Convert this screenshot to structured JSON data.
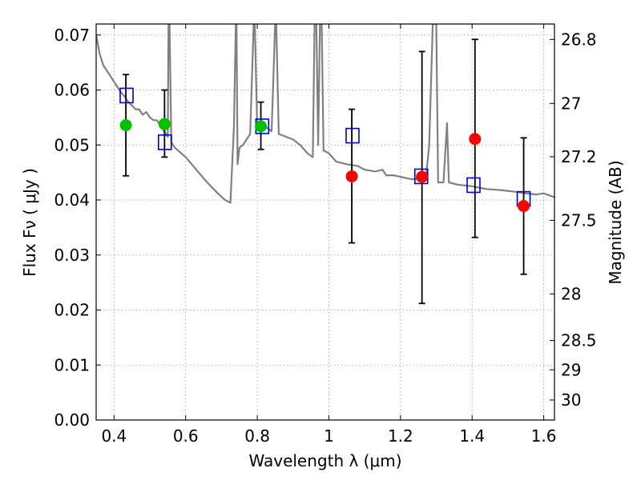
{
  "chart_data": {
    "type": "scatter",
    "title": "",
    "xlabel": "Wavelength  λ (μm)",
    "ylabel": "Flux  Fν  ( μJy )",
    "y2label": "Magnitude (AB)",
    "xlim": [
      0.35,
      1.63
    ],
    "ylim": [
      0.0,
      0.072
    ],
    "grid": true,
    "grid_style": "dotted",
    "legend": "none",
    "x_ticks": [
      0.4,
      0.6,
      0.8,
      1.0,
      1.2,
      1.4,
      1.6
    ],
    "x_tick_labels": [
      "0.4",
      "0.6",
      "0.8",
      "1",
      "1.2",
      "1.4",
      "1.6"
    ],
    "y_ticks": [
      0.0,
      0.01,
      0.02,
      0.03,
      0.04,
      0.05,
      0.06,
      0.07
    ],
    "y_tick_labels": [
      "0.00",
      "0.01",
      "0.02",
      "0.03",
      "0.04",
      "0.05",
      "0.06",
      "0.07"
    ],
    "magnitude_ticks": [
      26.8,
      27,
      27.2,
      27.5,
      28,
      28.5,
      29,
      30
    ],
    "magnitude_tick_labels": [
      "26.8",
      "27",
      "27.2",
      "27.5",
      "28",
      "28.5",
      "29",
      "30"
    ],
    "magnitude_zero_point_ujy": 3631000000,
    "colors": {
      "spectrum": "#808080",
      "model_box": "#0000cc",
      "obs_green": "#00c000",
      "obs_red": "#ff0000",
      "errorbar": "#000000",
      "grid": "#999999"
    },
    "spectrum": {
      "name": "",
      "points": [
        [
          0.35,
          0.07
        ],
        [
          0.36,
          0.0665
        ],
        [
          0.37,
          0.0645
        ],
        [
          0.38,
          0.0635
        ],
        [
          0.39,
          0.0625
        ],
        [
          0.4,
          0.0615
        ],
        [
          0.41,
          0.0605
        ],
        [
          0.42,
          0.0595
        ],
        [
          0.43,
          0.0588
        ],
        [
          0.44,
          0.0578
        ],
        [
          0.45,
          0.0572
        ],
        [
          0.46,
          0.0565
        ],
        [
          0.47,
          0.0565
        ],
        [
          0.48,
          0.0555
        ],
        [
          0.49,
          0.056
        ],
        [
          0.5,
          0.055
        ],
        [
          0.51,
          0.0545
        ],
        [
          0.52,
          0.0545
        ],
        [
          0.53,
          0.0535
        ],
        [
          0.54,
          0.0525
        ],
        [
          0.55,
          0.0515
        ],
        [
          0.552,
          0.072
        ],
        [
          0.555,
          0.072
        ],
        [
          0.56,
          0.0505
        ],
        [
          0.57,
          0.0495
        ],
        [
          0.6,
          0.0478
        ],
        [
          0.63,
          0.0455
        ],
        [
          0.66,
          0.0432
        ],
        [
          0.69,
          0.0412
        ],
        [
          0.71,
          0.04
        ],
        [
          0.725,
          0.0395
        ],
        [
          0.735,
          0.0535
        ],
        [
          0.74,
          0.072
        ],
        [
          0.742,
          0.072
        ],
        [
          0.745,
          0.0465
        ],
        [
          0.75,
          0.0495
        ],
        [
          0.76,
          0.05
        ],
        [
          0.78,
          0.052
        ],
        [
          0.79,
          0.072
        ],
        [
          0.793,
          0.072
        ],
        [
          0.8,
          0.0528
        ],
        [
          0.82,
          0.0535
        ],
        [
          0.84,
          0.0525
        ],
        [
          0.85,
          0.072
        ],
        [
          0.853,
          0.072
        ],
        [
          0.86,
          0.052
        ],
        [
          0.88,
          0.0515
        ],
        [
          0.9,
          0.051
        ],
        [
          0.92,
          0.05
        ],
        [
          0.94,
          0.0485
        ],
        [
          0.955,
          0.0478
        ],
        [
          0.96,
          0.072
        ],
        [
          0.965,
          0.072
        ],
        [
          0.97,
          0.05
        ],
        [
          0.975,
          0.072
        ],
        [
          0.98,
          0.072
        ],
        [
          0.985,
          0.049
        ],
        [
          1.0,
          0.0485
        ],
        [
          1.02,
          0.047
        ],
        [
          1.05,
          0.0465
        ],
        [
          1.08,
          0.0462
        ],
        [
          1.1,
          0.0455
        ],
        [
          1.13,
          0.0452
        ],
        [
          1.15,
          0.0455
        ],
        [
          1.16,
          0.0445
        ],
        [
          1.18,
          0.0445
        ],
        [
          1.2,
          0.0442
        ],
        [
          1.23,
          0.0438
        ],
        [
          1.25,
          0.0438
        ],
        [
          1.27,
          0.0435
        ],
        [
          1.28,
          0.0498
        ],
        [
          1.29,
          0.072
        ],
        [
          1.3,
          0.072
        ],
        [
          1.305,
          0.0432
        ],
        [
          1.32,
          0.0432
        ],
        [
          1.33,
          0.054
        ],
        [
          1.335,
          0.0432
        ],
        [
          1.36,
          0.0428
        ],
        [
          1.4,
          0.0425
        ],
        [
          1.44,
          0.042
        ],
        [
          1.48,
          0.0418
        ],
        [
          1.52,
          0.0415
        ],
        [
          1.55,
          0.0412
        ],
        [
          1.58,
          0.041
        ],
        [
          1.6,
          0.0412
        ],
        [
          1.63,
          0.0405
        ]
      ]
    },
    "series": [
      {
        "name": "",
        "marker": "square",
        "points": [
          {
            "x": 0.435,
            "y": 0.059
          },
          {
            "x": 0.542,
            "y": 0.0505
          },
          {
            "x": 0.814,
            "y": 0.0534
          },
          {
            "x": 1.066,
            "y": 0.0517
          },
          {
            "x": 1.258,
            "y": 0.0443
          },
          {
            "x": 1.404,
            "y": 0.0427
          },
          {
            "x": 1.544,
            "y": 0.0402
          }
        ]
      },
      {
        "name": "",
        "marker": "circle",
        "points": [
          {
            "x": 0.433,
            "y": 0.0536,
            "yerr_low": 0.0444,
            "yerr_high": 0.0628,
            "color_key": "obs_green"
          },
          {
            "x": 0.541,
            "y": 0.0538,
            "yerr_low": 0.0478,
            "yerr_high": 0.06,
            "color_key": "obs_green"
          },
          {
            "x": 0.81,
            "y": 0.0534,
            "yerr_low": 0.0492,
            "yerr_high": 0.0578,
            "color_key": "obs_green"
          },
          {
            "x": 1.064,
            "y": 0.0443,
            "yerr_low": 0.0322,
            "yerr_high": 0.0565,
            "color_key": "obs_red"
          },
          {
            "x": 1.26,
            "y": 0.0442,
            "yerr_low": 0.0212,
            "yerr_high": 0.067,
            "color_key": "obs_red"
          },
          {
            "x": 1.408,
            "y": 0.0511,
            "yerr_low": 0.0332,
            "yerr_high": 0.0692,
            "color_key": "obs_red"
          },
          {
            "x": 1.544,
            "y": 0.0389,
            "yerr_low": 0.0265,
            "yerr_high": 0.0513,
            "color_key": "obs_red"
          }
        ]
      }
    ]
  }
}
